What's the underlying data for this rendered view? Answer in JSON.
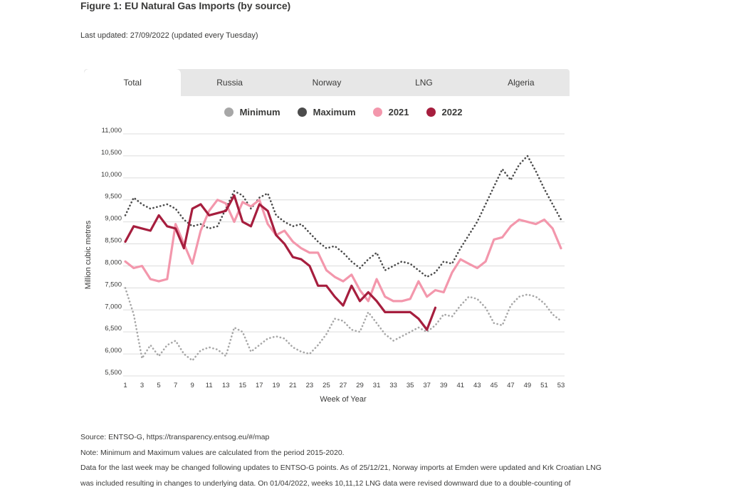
{
  "page": {
    "title": "Figure 1: EU Natural Gas Imports (by source)",
    "last_updated": "Last updated: 27/09/2022 (updated every Tuesday)"
  },
  "tabs": [
    {
      "label": "Total",
      "active": true
    },
    {
      "label": "Russia",
      "active": false
    },
    {
      "label": "Norway",
      "active": false
    },
    {
      "label": "LNG",
      "active": false
    },
    {
      "label": "Algeria",
      "active": false
    }
  ],
  "footer": {
    "source": "Source: ENTSO-G,  https://transparency.entsog.eu/#/map",
    "note": "Note: Minimum and Maximum values are calculated from the period 2015-2020.",
    "disclaimer1": "Data for the last week may be changed following updates to ENTSO-G points. As of 25/12/21, Norway imports at Emden were updated and Krk Croatian LNG",
    "disclaimer2": "was included resulting in changes to underlying data. On 01/04/2022, weeks 10,11,12 LNG data were revised downward due to a double-counting of"
  },
  "chart_data": {
    "type": "line",
    "title": "",
    "xlabel": "Week of Year",
    "ylabel": "Million cubic metres",
    "xlim": [
      1,
      53
    ],
    "ylim": [
      5500,
      11000
    ],
    "ytick_step": 500,
    "xticks": [
      1,
      3,
      5,
      7,
      9,
      11,
      13,
      15,
      17,
      19,
      21,
      23,
      25,
      27,
      29,
      31,
      33,
      35,
      37,
      39,
      41,
      43,
      45,
      47,
      49,
      51,
      53
    ],
    "grid": true,
    "legend_position": "top",
    "x": [
      1,
      2,
      3,
      4,
      5,
      6,
      7,
      8,
      9,
      10,
      11,
      12,
      13,
      14,
      15,
      16,
      17,
      18,
      19,
      20,
      21,
      22,
      23,
      24,
      25,
      26,
      27,
      28,
      29,
      30,
      31,
      32,
      33,
      34,
      35,
      36,
      37,
      38,
      39,
      40,
      41,
      42,
      43,
      44,
      45,
      46,
      47,
      48,
      49,
      50,
      51,
      52,
      53
    ],
    "series": [
      {
        "name": "Minimum",
        "color": "#a7a7a7",
        "style": "dotted",
        "values": [
          7500,
          6900,
          5900,
          6200,
          5950,
          6200,
          6300,
          6000,
          5850,
          6080,
          6150,
          6100,
          5950,
          6600,
          6500,
          6050,
          6200,
          6350,
          6400,
          6350,
          6150,
          6050,
          6000,
          6200,
          6450,
          6800,
          6750,
          6550,
          6500,
          6950,
          6700,
          6450,
          6300,
          6400,
          6500,
          6600,
          6500,
          6650,
          6900,
          6850,
          7100,
          7300,
          7250,
          7050,
          6700,
          6650,
          7100,
          7300,
          7350,
          7300,
          7150,
          6900,
          6750
        ]
      },
      {
        "name": "Maximum",
        "color": "#4c4c4c",
        "style": "dotted",
        "values": [
          9150,
          9550,
          9400,
          9300,
          9350,
          9400,
          9300,
          9050,
          8900,
          8950,
          8850,
          8900,
          9300,
          9700,
          9600,
          9300,
          9550,
          9650,
          9150,
          9000,
          8900,
          8950,
          8750,
          8550,
          8400,
          8450,
          8300,
          8100,
          7950,
          8150,
          8300,
          7900,
          8000,
          8100,
          8050,
          7900,
          7750,
          7850,
          8100,
          8050,
          8400,
          8700,
          9000,
          9400,
          9800,
          10200,
          9950,
          10300,
          10500,
          10150,
          9750,
          9400,
          9050
        ]
      },
      {
        "name": "2021",
        "color": "#f397ac",
        "style": "solid",
        "values": [
          8100,
          7950,
          8000,
          7700,
          7650,
          7700,
          8950,
          8500,
          8050,
          8800,
          9250,
          9500,
          9420,
          9000,
          9450,
          9350,
          9500,
          8950,
          8700,
          8800,
          8550,
          8400,
          8300,
          8300,
          7900,
          7750,
          7650,
          7800,
          7450,
          7200,
          7700,
          7300,
          7200,
          7200,
          7250,
          7650,
          7300,
          7450,
          7400,
          7850,
          8150,
          8050,
          7950,
          8100,
          8600,
          8650,
          8900,
          9050,
          9000,
          8950,
          9050,
          8850,
          8400
        ]
      },
      {
        "name": "2022",
        "color": "#a61e3e",
        "style": "solid",
        "values": [
          8550,
          8900,
          8850,
          8800,
          9150,
          8900,
          8850,
          8400,
          9300,
          9400,
          9150,
          9200,
          9250,
          9600,
          9000,
          8900,
          9400,
          9250,
          8700,
          8500,
          8200,
          8150,
          8000,
          7550,
          7550,
          7300,
          7100,
          7550,
          7200,
          7400,
          7200,
          6950,
          6950,
          6950,
          6950,
          6800,
          6550,
          7050,
          null,
          null,
          null,
          null,
          null,
          null,
          null,
          null,
          null,
          null,
          null,
          null,
          null,
          null,
          null
        ]
      }
    ]
  }
}
